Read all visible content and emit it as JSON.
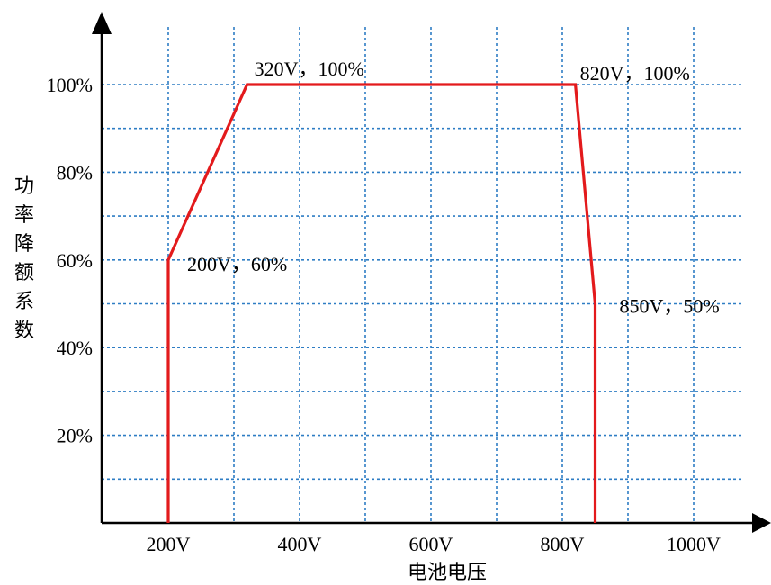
{
  "chart_data": {
    "type": "line",
    "title": "",
    "xlabel": "电池电压",
    "ylabel": "功率降额系数",
    "xlim": [
      100,
      1000
    ],
    "ylim": [
      0,
      100
    ],
    "x_ticks": [
      {
        "value": 200,
        "label": "200V"
      },
      {
        "value": 400,
        "label": "400V"
      },
      {
        "value": 600,
        "label": "600V"
      },
      {
        "value": 800,
        "label": "800V"
      },
      {
        "value": 1000,
        "label": "1000V"
      }
    ],
    "y_ticks": [
      {
        "value": 20,
        "label": "20%"
      },
      {
        "value": 40,
        "label": "40%"
      },
      {
        "value": 60,
        "label": "60%"
      },
      {
        "value": 80,
        "label": "80%"
      },
      {
        "value": 100,
        "label": "100%"
      }
    ],
    "x_grid": [
      200,
      300,
      400,
      500,
      600,
      700,
      800,
      900,
      1000
    ],
    "y_grid": [
      10,
      20,
      30,
      40,
      50,
      60,
      70,
      80,
      90,
      100
    ],
    "grid": true,
    "series": [
      {
        "color": "#e31a1c",
        "points": [
          {
            "x": 200,
            "y": 0
          },
          {
            "x": 200,
            "y": 60
          },
          {
            "x": 320,
            "y": 100
          },
          {
            "x": 820,
            "y": 100
          },
          {
            "x": 850,
            "y": 50
          },
          {
            "x": 850,
            "y": 0
          }
        ]
      }
    ],
    "annotations": [
      {
        "x": 200,
        "y": 60,
        "text": "200V，60%"
      },
      {
        "x": 320,
        "y": 100,
        "text": "320V，100%"
      },
      {
        "x": 820,
        "y": 100,
        "text": "820V，100%"
      },
      {
        "x": 850,
        "y": 50,
        "text": "850V，50%"
      }
    ]
  }
}
